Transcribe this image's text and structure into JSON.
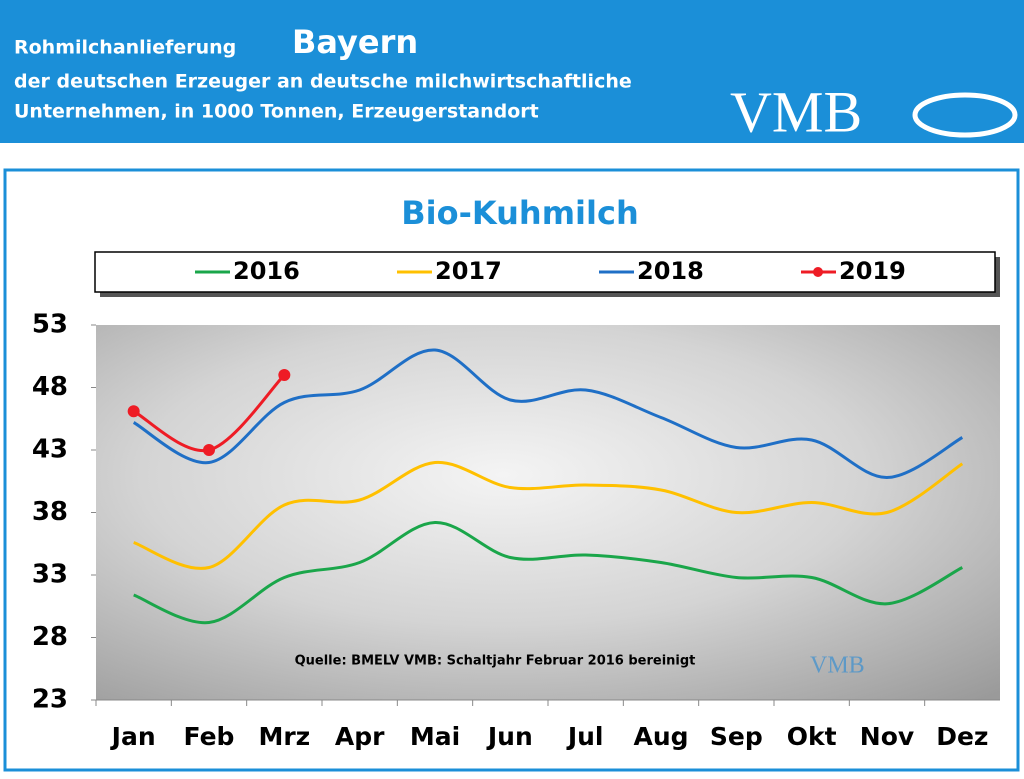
{
  "header": {
    "line1": "Rohmilchanlieferung",
    "region": "Bayern",
    "line2": "der deutschen Erzeuger an deutsche milchwirtschaftliche",
    "line3": "Unternehmen, in 1000 Tonnen, Erzeugerstandort",
    "logo": "VMB"
  },
  "chart_data": {
    "type": "line",
    "title": "Bio-Kuhmilch",
    "note": "Quelle:  BMELV   VMB: Schaltjahr  Februar  2016  bereinigt",
    "categories": [
      "Jan",
      "Feb",
      "Mrz",
      "Apr",
      "Mai",
      "Jun",
      "Jul",
      "Aug",
      "Sep",
      "Okt",
      "Nov",
      "Dez"
    ],
    "series": [
      {
        "name": "2016",
        "color": "#1aa64a",
        "values": [
          31.4,
          29.2,
          32.8,
          34.0,
          37.2,
          34.4,
          34.6,
          34.0,
          32.8,
          32.8,
          30.7,
          33.6
        ]
      },
      {
        "name": "2017",
        "color": "#ffc000",
        "values": [
          35.6,
          33.6,
          38.6,
          39.0,
          42.0,
          40.0,
          40.2,
          39.8,
          38.0,
          38.8,
          38.0,
          41.9
        ]
      },
      {
        "name": "2018",
        "color": "#1f6fc6",
        "values": [
          45.2,
          42.0,
          46.8,
          47.8,
          51.0,
          47.0,
          47.8,
          45.6,
          43.2,
          43.8,
          40.8,
          44.0
        ]
      },
      {
        "name": "2019",
        "color": "#ee1c25",
        "markers": true,
        "values": [
          46.1,
          43.0,
          49.0,
          null,
          null,
          null,
          null,
          null,
          null,
          null,
          null,
          null
        ]
      }
    ],
    "ylim": [
      23,
      53
    ],
    "yticks": [
      23,
      28,
      33,
      38,
      43,
      48,
      53
    ]
  }
}
